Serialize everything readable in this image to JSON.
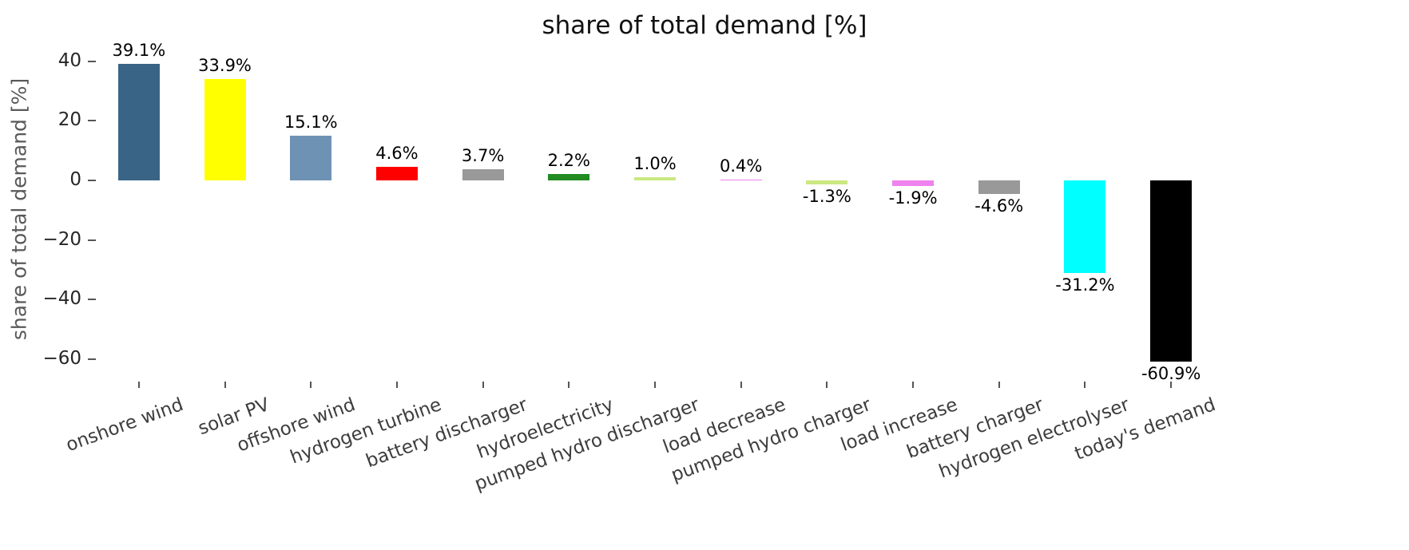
{
  "chart_data": {
    "type": "bar",
    "title": "share of total demand [%]",
    "xlabel": "",
    "ylabel": "share of total demand [%]",
    "grid": false,
    "legend": null,
    "ylim": [
      -67.5,
      45
    ],
    "yticks": [
      40,
      20,
      0,
      -20,
      -40,
      -60
    ],
    "ytick_labels": [
      "40",
      "20",
      "0",
      "−20",
      "−40",
      "−60"
    ],
    "categories": [
      "onshore wind",
      "solar PV",
      "offshore wind",
      "hydrogen turbine",
      "battery discharger",
      "hydroelectricity",
      "pumped hydro discharger",
      "load decrease",
      "pumped hydro charger",
      "load increase",
      "battery charger",
      "hydrogen electrolyser",
      "today's demand"
    ],
    "values": [
      39.1,
      33.9,
      15.1,
      4.6,
      3.7,
      2.2,
      1.0,
      0.4,
      -1.3,
      -1.9,
      -4.6,
      -31.2,
      -60.9
    ],
    "value_labels": [
      "39.1%",
      "33.9%",
      "15.1%",
      "4.6%",
      "3.7%",
      "2.2%",
      "1.0%",
      "0.4%",
      "-1.3%",
      "-1.9%",
      "-4.6%",
      "-31.2%",
      "-60.9%"
    ],
    "colors": [
      "#3a6486",
      "#ffff00",
      "#6e92b4",
      "#ff0000",
      "#999999",
      "#228b22",
      "#cbe881",
      "#ee82ee",
      "#cbe881",
      "#ee82ee",
      "#999999",
      "#00ffff",
      "#000000"
    ]
  }
}
